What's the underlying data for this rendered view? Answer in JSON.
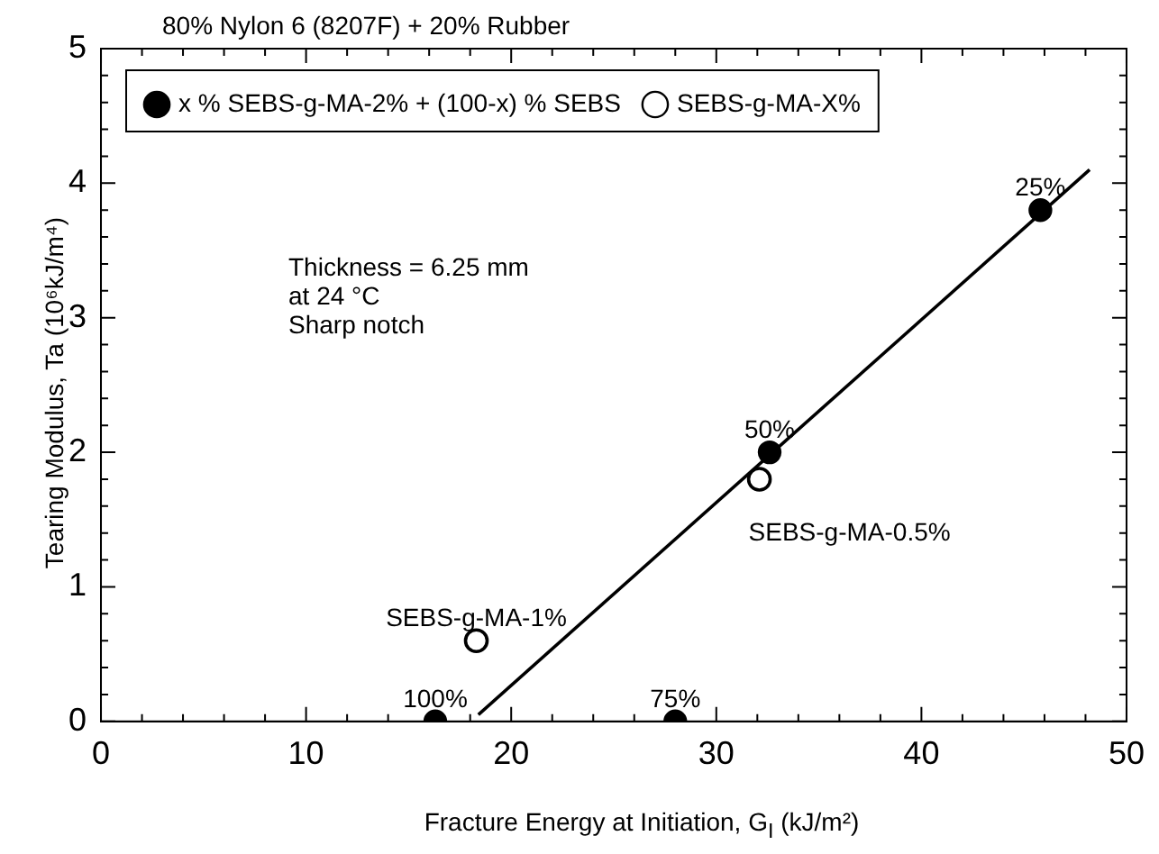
{
  "chart_data": {
    "type": "scatter",
    "title": "80% Nylon 6 (8207F) + 20% Rubber",
    "xlabel": "Fracture Energy at Initiation, G$_{I}$ (kJ/m²)",
    "ylabel": "Tearing Modulus, Ta (10⁶kJ/m⁴)",
    "xlim": [
      0,
      50
    ],
    "ylim": [
      0,
      5
    ],
    "xticks": [
      0,
      {
        "value": 2,
        "label": null
      },
      {
        "value": 4,
        "label": null
      },
      {
        "value": 6,
        "label": null
      },
      {
        "value": 8,
        "label": null
      },
      10,
      {
        "value": 12,
        "label": null
      },
      {
        "value": 14,
        "label": null
      },
      {
        "value": 16,
        "label": null
      },
      {
        "value": 18,
        "label": null
      },
      20,
      {
        "value": 22,
        "label": null
      },
      {
        "value": 24,
        "label": null
      },
      {
        "value": 26,
        "label": null
      },
      {
        "value": 28,
        "label": null
      },
      30,
      {
        "value": 32,
        "label": null
      },
      {
        "value": 34,
        "label": null
      },
      {
        "value": 36,
        "label": null
      },
      {
        "value": 38,
        "label": null
      },
      40,
      {
        "value": 42,
        "label": null
      },
      {
        "value": 44,
        "label": null
      },
      {
        "value": 46,
        "label": null
      },
      {
        "value": 48,
        "label": null
      },
      50
    ],
    "yticks": [
      0,
      {
        "value": 0.2,
        "label": null
      },
      {
        "value": 0.4,
        "label": null
      },
      {
        "value": 0.6,
        "label": null
      },
      {
        "value": 0.8,
        "label": null
      },
      1,
      {
        "value": 1.2,
        "label": null
      },
      {
        "value": 1.4,
        "label": null
      },
      {
        "value": 1.6,
        "label": null
      },
      {
        "value": 1.8,
        "label": null
      },
      2,
      {
        "value": 2.2,
        "label": null
      },
      {
        "value": 2.4,
        "label": null
      },
      {
        "value": 2.6,
        "label": null
      },
      {
        "value": 2.8,
        "label": null
      },
      3,
      {
        "value": 3.2,
        "label": null
      },
      {
        "value": 3.4,
        "label": null
      },
      {
        "value": 3.6,
        "label": null
      },
      {
        "value": 3.8,
        "label": null
      },
      4,
      {
        "value": 4.2,
        "label": null
      },
      {
        "value": 4.4,
        "label": null
      },
      {
        "value": 4.6,
        "label": null
      },
      {
        "value": 4.8,
        "label": null
      },
      5
    ],
    "grid": false,
    "legend": "top left",
    "marker": "circle",
    "series": [
      {
        "name": "x % SEBS-g-MA-2% + (100-x) % SEBS",
        "color": "#000000",
        "x": [
          16.3,
          28,
          32.6,
          45.8
        ],
        "values": [
          0,
          0,
          2.0,
          3.8
        ]
      },
      {
        "name": "SEBS-g-MA-X%",
        "color": "#000000",
        "x": [
          18.3,
          32.1
        ],
        "values": [
          0.6,
          1.8
        ]
      },
      {
        "type": "line",
        "color": "#000000",
        "marker": "none",
        "x": [
          18.4,
          48.2
        ],
        "values": [
          0.05,
          4.1
        ]
      }
    ],
    "annotations": [
      {
        "text": "100%",
        "x": 16.3,
        "y": 0
      },
      {
        "text": "75%",
        "x": 28,
        "y": 0
      },
      {
        "text": "50%",
        "x": 32.6,
        "y": 2.0
      },
      {
        "text": "25%",
        "x": 45.8,
        "y": 3.8
      },
      {
        "text": "SEBS-g-MA-1%",
        "x": 18.3,
        "y": 0.6
      },
      {
        "text": "SEBS-g-MA-0.5%",
        "x": 32.1,
        "y": 1.8
      },
      "Thickness = 6.25 mm\nat 24 °C\nSharp notch"
    ]
  }
}
